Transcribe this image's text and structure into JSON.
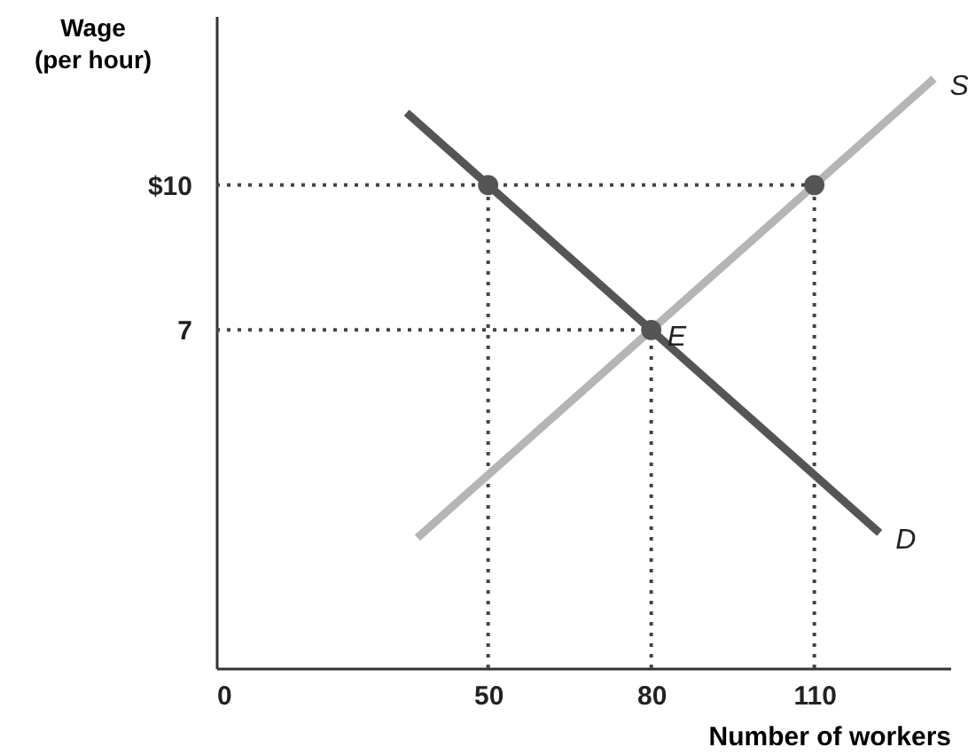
{
  "chart_data": {
    "type": "line",
    "xlabel": "Number of workers",
    "ylabel": "Wage\n(per hour)",
    "xlim": [
      0,
      135
    ],
    "ylim": [
      0,
      13.5
    ],
    "xticks": [
      0,
      50,
      80,
      110
    ],
    "yticks": [
      {
        "value": 10,
        "label": "$10"
      },
      7
    ],
    "series": [
      {
        "line_style": "dotted",
        "color": "#444444",
        "x": [
          0,
          110
        ],
        "values": [
          10,
          10
        ]
      },
      {
        "line_style": "dotted",
        "color": "#444444",
        "x": [
          0,
          80
        ],
        "values": [
          7,
          7
        ]
      },
      {
        "line_style": "dotted",
        "color": "#444444",
        "x": [
          50,
          50
        ],
        "values": [
          0,
          10
        ]
      },
      {
        "line_style": "dotted",
        "color": "#444444",
        "x": [
          80,
          80
        ],
        "values": [
          0,
          7
        ]
      },
      {
        "line_style": "dotted",
        "color": "#444444",
        "x": [
          110,
          110
        ],
        "values": [
          0,
          10
        ]
      },
      {
        "line_style": "solid",
        "color": "#b5b5b5",
        "x": [
          37,
          132
        ],
        "values": [
          2.7,
          12.2
        ]
      },
      {
        "line_style": "solid",
        "color": "#555555",
        "x": [
          35,
          122
        ],
        "values": [
          11.5,
          2.8
        ]
      },
      {
        "type": "scatter",
        "marker": "circle",
        "color": "#555555",
        "x": [
          50,
          80,
          110
        ],
        "values": [
          10,
          7,
          10
        ]
      }
    ],
    "annotations": [
      {
        "text": "S",
        "x": 132,
        "y": 12.2
      },
      {
        "text": "D",
        "x": 122,
        "y": 2.8
      },
      {
        "text": "E",
        "x": 80,
        "y": 7
      }
    ]
  }
}
